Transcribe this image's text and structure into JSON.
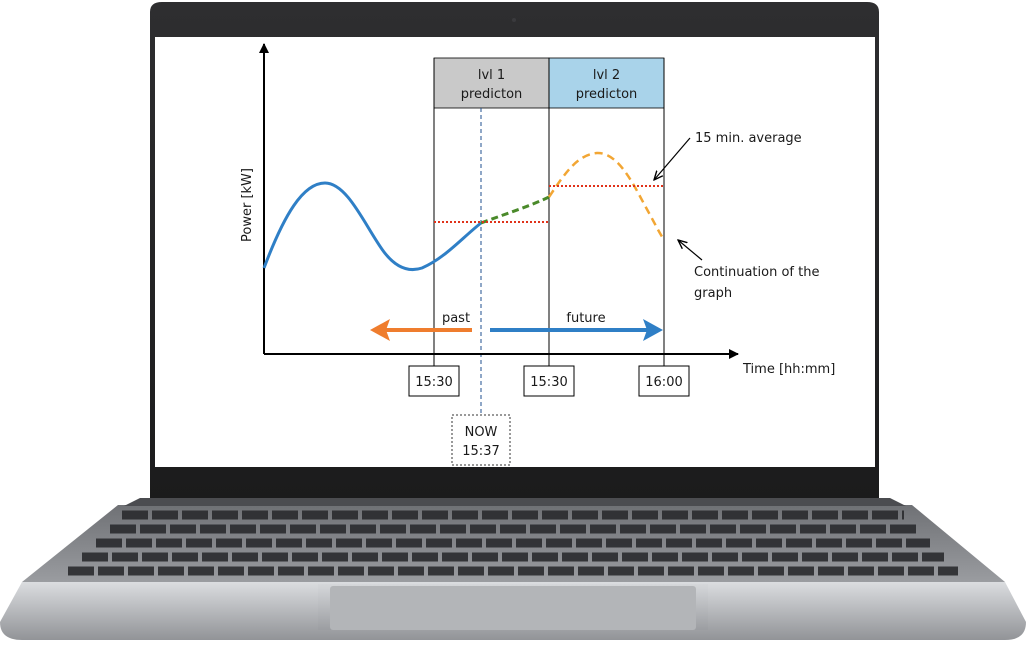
{
  "diagram": {
    "y_axis_label": "Power [kW]",
    "x_axis_label": "Time [hh:mm]",
    "lvl1": {
      "line1": "lvl 1",
      "line2": "predicton"
    },
    "lvl2": {
      "line1": "lvl 2",
      "line2": "predicton"
    },
    "annotations": {
      "average": "15 min. average",
      "continuation_line1": "Continuation of the",
      "continuation_line2": "graph"
    },
    "arrows": {
      "past": "past",
      "future": "future"
    },
    "time_labels": [
      "15:30",
      "15:30",
      "16:00"
    ],
    "now": {
      "line1": "NOW",
      "line2": "15:37"
    }
  },
  "colors": {
    "actual_curve": "#2f7fc6",
    "green_prediction": "#4a8a2a",
    "orange_prediction": "#f2a634",
    "average_line": "#e0321a",
    "past_arrow": "#ef7d2e",
    "future_arrow": "#2f7fc6",
    "lvl1_band": "#c9c9c9",
    "lvl2_band": "#a9d3ea"
  }
}
